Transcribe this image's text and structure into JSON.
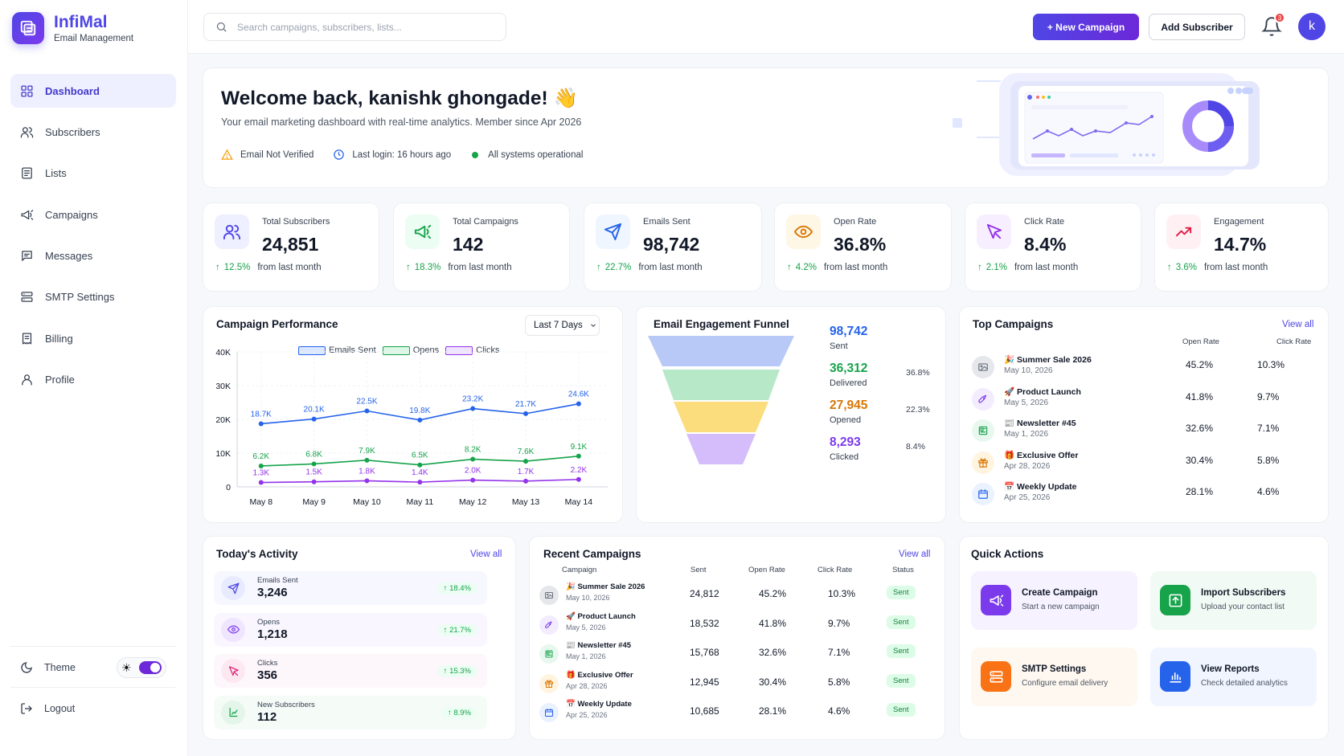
{
  "brand": {
    "name": "InfiMal",
    "subtitle": "Email Management"
  },
  "nav": [
    {
      "label": "Dashboard",
      "icon": "grid-icon",
      "active": true
    },
    {
      "label": "Subscribers",
      "icon": "users-icon"
    },
    {
      "label": "Lists",
      "icon": "list-icon"
    },
    {
      "label": "Campaigns",
      "icon": "megaphone-icon"
    },
    {
      "label": "Messages",
      "icon": "message-icon"
    },
    {
      "label": "SMTP Settings",
      "icon": "server-icon"
    },
    {
      "label": "Billing",
      "icon": "receipt-icon"
    },
    {
      "label": "Profile",
      "icon": "user-icon"
    }
  ],
  "sidebar_footer": {
    "theme_label": "Theme",
    "logout_label": "Logout"
  },
  "topbar": {
    "search_placeholder": "Search campaigns, subscribers, lists...",
    "new_campaign": "+ New Campaign",
    "add_subscriber": "Add Subscriber",
    "notification_count": "3",
    "avatar_initial": "k"
  },
  "welcome": {
    "title": "Welcome back, kanishk ghongade! 👋",
    "subtitle": "Your email marketing dashboard with real-time analytics. Member since Apr 2026",
    "email_status": "Email Not Verified",
    "last_login": "Last login: 16 hours ago",
    "system_status": "All systems operational"
  },
  "stats": [
    {
      "label": "Total Subscribers",
      "value": "24,851",
      "change": "12.5%",
      "suffix": "from last month",
      "icon": "users-icon",
      "color": "#4f46e5",
      "bg": "#eef0ff"
    },
    {
      "label": "Total Campaigns",
      "value": "142",
      "change": "18.3%",
      "suffix": "from last month",
      "icon": "megaphone-icon",
      "color": "#16a34a",
      "bg": "#ecfdf3"
    },
    {
      "label": "Emails Sent",
      "value": "98,742",
      "change": "22.7%",
      "suffix": "from last month",
      "icon": "send-icon",
      "color": "#2563eb",
      "bg": "#eff6ff"
    },
    {
      "label": "Open Rate",
      "value": "36.8%",
      "change": "4.2%",
      "suffix": "from last month",
      "icon": "eye-icon",
      "color": "#d97706",
      "bg": "#fff7e6"
    },
    {
      "label": "Click Rate",
      "value": "8.4%",
      "change": "2.1%",
      "suffix": "from last month",
      "icon": "cursor-icon",
      "color": "#9333ea",
      "bg": "#f7efff"
    },
    {
      "label": "Engagement",
      "value": "14.7%",
      "change": "3.6%",
      "suffix": "from last month",
      "icon": "trending-up-icon",
      "color": "#e11d48",
      "bg": "#fff0f3"
    }
  ],
  "performance": {
    "title": "Campaign Performance",
    "range": "Last 7 Days",
    "chart_data": {
      "type": "line",
      "x": [
        "May 8",
        "May 9",
        "May 10",
        "May 11",
        "May 12",
        "May 13",
        "May 14"
      ],
      "ylim": [
        0,
        40000
      ],
      "yticks": [
        "0",
        "10K",
        "20K",
        "30K",
        "40K"
      ],
      "grid": true,
      "legend_position": "top",
      "series": [
        {
          "name": "Emails Sent",
          "color": "#2563eb",
          "values": [
            18700,
            20100,
            22500,
            19800,
            23200,
            21700,
            24600
          ],
          "labels": [
            "18.7K",
            "20.1K",
            "22.5K",
            "19.8K",
            "23.2K",
            "21.7K",
            "24.6K"
          ]
        },
        {
          "name": "Opens",
          "color": "#16a34a",
          "values": [
            6200,
            6800,
            7900,
            6500,
            8200,
            7600,
            9100
          ],
          "labels": [
            "6.2K",
            "6.8K",
            "7.9K",
            "6.5K",
            "8.2K",
            "7.6K",
            "9.1K"
          ]
        },
        {
          "name": "Clicks",
          "color": "#9333ea",
          "values": [
            1300,
            1500,
            1800,
            1400,
            2000,
            1700,
            2200
          ],
          "labels": [
            "1.3K",
            "1.5K",
            "1.8K",
            "1.4K",
            "2.0K",
            "1.7K",
            "2.2K"
          ]
        }
      ]
    }
  },
  "funnel": {
    "title": "Email Engagement Funnel",
    "stages": [
      {
        "value": "98,742",
        "label": "Sent",
        "color": "#2563eb",
        "fill": "#b9c9f7",
        "pct": ""
      },
      {
        "value": "36,312",
        "label": "Delivered",
        "color": "#16a34a",
        "fill": "#b7e8c8",
        "pct": "36.8%"
      },
      {
        "value": "27,945",
        "label": "Opened",
        "color": "#d97706",
        "fill": "#fbdd7e",
        "pct": "22.3%"
      },
      {
        "value": "8,293",
        "label": "Clicked",
        "color": "#7c3aed",
        "fill": "#d4bdfa",
        "pct": "8.4%"
      }
    ]
  },
  "top_campaigns": {
    "title": "Top Campaigns",
    "view_all": "View all",
    "col_open": "Open Rate",
    "col_click": "Click Rate",
    "rows": [
      {
        "name": "🎉 Summer Sale 2026",
        "date": "May 10, 2026",
        "open": "45.2%",
        "click": "10.3%",
        "icon": "image-icon",
        "color": "#6b7280",
        "bg": "#e5e7eb"
      },
      {
        "name": "🚀 Product Launch",
        "date": "May 5, 2026",
        "open": "41.8%",
        "click": "9.7%",
        "icon": "rocket-icon",
        "color": "#7c3aed",
        "bg": "#f3ecff"
      },
      {
        "name": "📰 Newsletter #45",
        "date": "May 1, 2026",
        "open": "32.6%",
        "click": "7.1%",
        "icon": "newspaper-icon",
        "color": "#16a34a",
        "bg": "#e8f8ee"
      },
      {
        "name": "🎁 Exclusive Offer",
        "date": "Apr 28, 2026",
        "open": "30.4%",
        "click": "5.8%",
        "icon": "gift-icon",
        "color": "#d97706",
        "bg": "#fff4e0"
      },
      {
        "name": "📅 Weekly Update",
        "date": "Apr 25, 2026",
        "open": "28.1%",
        "click": "4.6%",
        "icon": "calendar-icon",
        "color": "#2563eb",
        "bg": "#eaf1ff"
      }
    ]
  },
  "activity": {
    "title": "Today's Activity",
    "view_all": "View all",
    "rows": [
      {
        "label": "Emails Sent",
        "value": "3,246",
        "change": "18.4%",
        "icon": "send-icon",
        "color": "#4f46e5",
        "bg": "#e8ebff",
        "rowbg": "#f6f7ff"
      },
      {
        "label": "Opens",
        "value": "1,218",
        "change": "21.7%",
        "icon": "eye-icon",
        "color": "#7c3aed",
        "bg": "#efe5ff",
        "rowbg": "#f9f6ff"
      },
      {
        "label": "Clicks",
        "value": "356",
        "change": "15.3%",
        "icon": "cursor-icon",
        "color": "#db2777",
        "bg": "#fde8f2",
        "rowbg": "#fdf6fa"
      },
      {
        "label": "New Subscribers",
        "value": "112",
        "change": "8.9%",
        "icon": "user-plus-icon",
        "color": "#16a34a",
        "bg": "#e4f6ea",
        "rowbg": "#f5fbf7"
      }
    ]
  },
  "recent_campaigns": {
    "title": "Recent Campaigns",
    "view_all": "View all",
    "cols": [
      "Campaign",
      "Sent",
      "Open Rate",
      "Click Rate",
      "Status"
    ],
    "rows": [
      {
        "name": "🎉 Summer Sale 2026",
        "date": "May 10, 2026",
        "sent": "24,812",
        "open": "45.2%",
        "click": "10.3%",
        "status": "Sent",
        "icon": "image-icon",
        "color": "#6b7280",
        "bg": "#e5e7eb"
      },
      {
        "name": "🚀 Product Launch",
        "date": "May 5, 2026",
        "sent": "18,532",
        "open": "41.8%",
        "click": "9.7%",
        "status": "Sent",
        "icon": "rocket-icon",
        "color": "#7c3aed",
        "bg": "#f3ecff"
      },
      {
        "name": "📰 Newsletter #45",
        "date": "May 1, 2026",
        "sent": "15,768",
        "open": "32.6%",
        "click": "7.1%",
        "status": "Sent",
        "icon": "newspaper-icon",
        "color": "#16a34a",
        "bg": "#e8f8ee"
      },
      {
        "name": "🎁 Exclusive Offer",
        "date": "Apr 28, 2026",
        "sent": "12,945",
        "open": "30.4%",
        "click": "5.8%",
        "status": "Sent",
        "icon": "gift-icon",
        "color": "#d97706",
        "bg": "#fff4e0"
      },
      {
        "name": "📅 Weekly Update",
        "date": "Apr 25, 2026",
        "sent": "10,685",
        "open": "28.1%",
        "click": "4.6%",
        "status": "Sent",
        "icon": "calendar-icon",
        "color": "#2563eb",
        "bg": "#eaf1ff"
      }
    ]
  },
  "quick_actions": {
    "title": "Quick Actions",
    "tiles": [
      {
        "title": "Create Campaign",
        "sub": "Start a new campaign",
        "icon": "megaphone-icon",
        "color": "#7c3aed",
        "bg": "#f6f2ff"
      },
      {
        "title": "Import Subscribers",
        "sub": "Upload your contact list",
        "icon": "upload-icon",
        "color": "#16a34a",
        "bg": "#f1faf4"
      },
      {
        "title": "SMTP Settings",
        "sub": "Configure email delivery",
        "icon": "server-icon",
        "color": "#f97316",
        "bg": "#fff8f0"
      },
      {
        "title": "View Reports",
        "sub": "Check detailed analytics",
        "icon": "chart-icon",
        "color": "#2563eb",
        "bg": "#f1f5ff"
      }
    ]
  }
}
